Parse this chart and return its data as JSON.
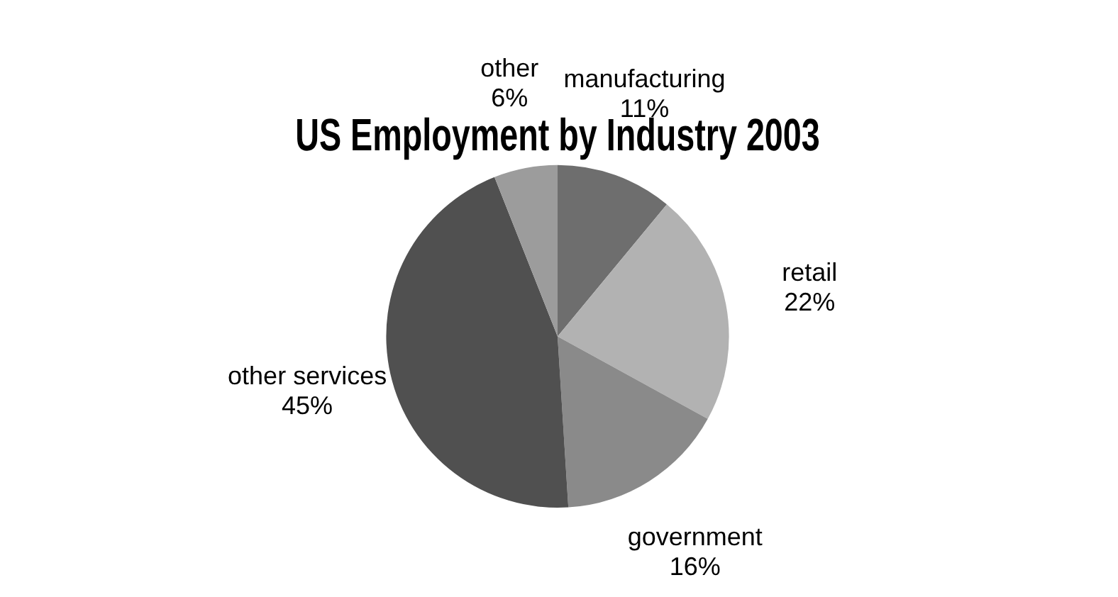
{
  "chart_data": {
    "type": "pie",
    "title": "US Employment by Industry 2003",
    "categories": [
      "manufacturing",
      "retail",
      "government",
      "other services",
      "other"
    ],
    "values": [
      11,
      22,
      16,
      45,
      6
    ],
    "value_labels": [
      "11%",
      "22%",
      "16%",
      "45%",
      "6%"
    ],
    "colors": [
      "#6e6e6e",
      "#b2b2b2",
      "#8a8a8a",
      "#505050",
      "#9c9c9c"
    ],
    "legend": false
  }
}
